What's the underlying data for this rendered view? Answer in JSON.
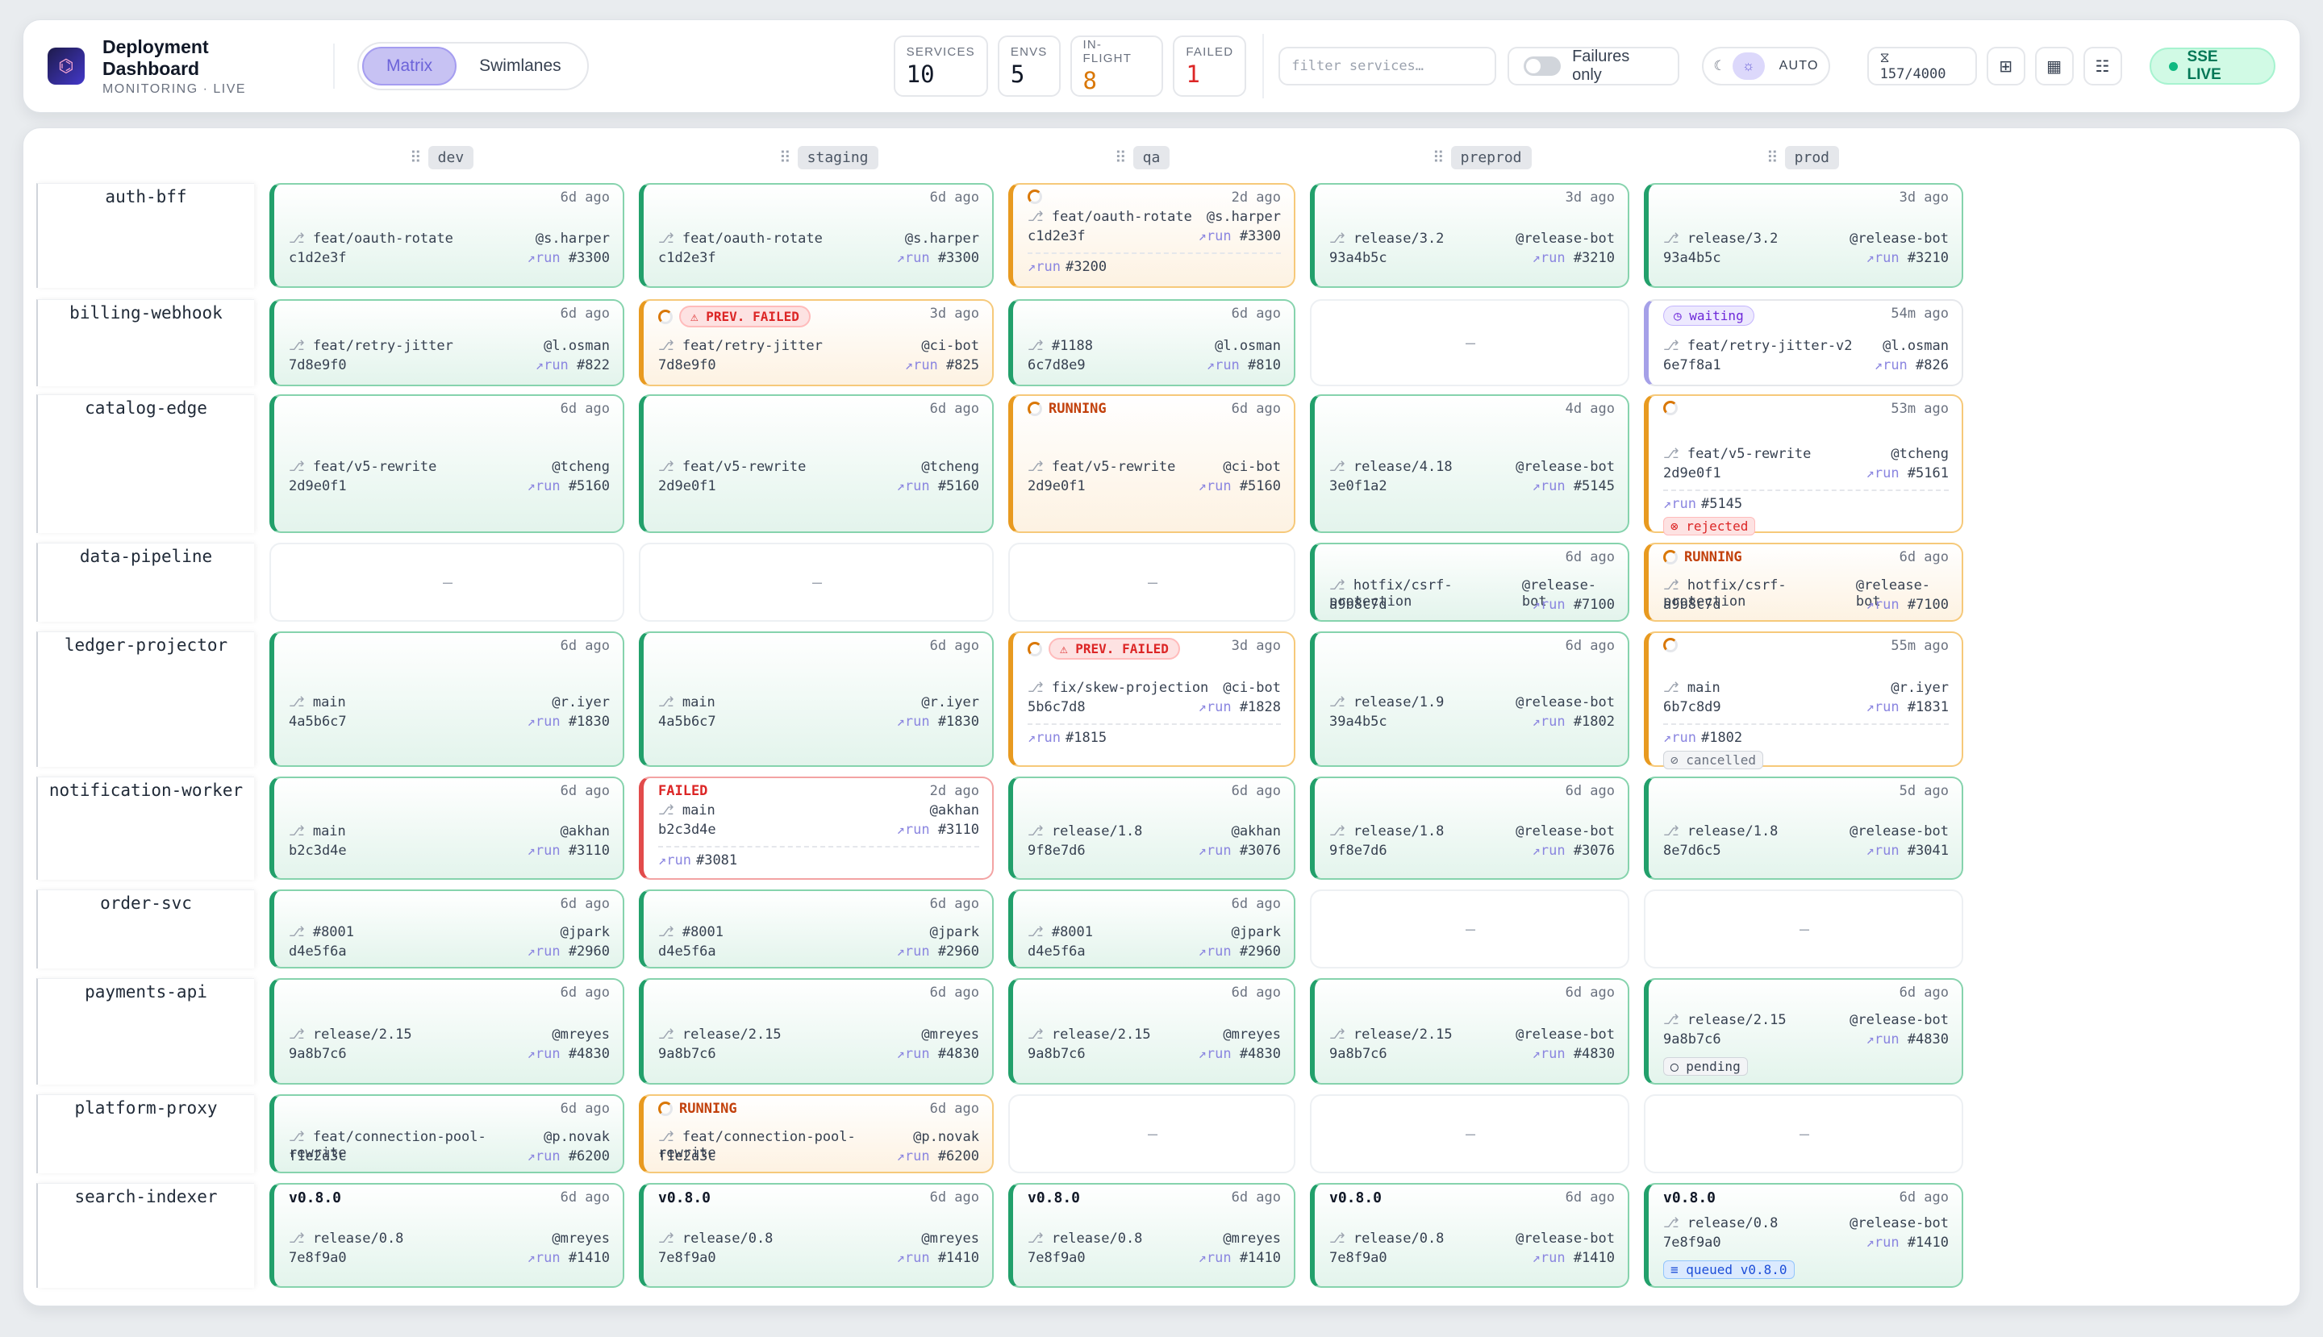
{
  "header": {
    "logo": "⌬",
    "title": "Deployment Dashboard",
    "subtitle": "MONITORING · LIVE",
    "views": [
      "Matrix",
      "Swimlanes"
    ],
    "stats": [
      {
        "label": "SERVICES",
        "value": "10",
        "tone": ""
      },
      {
        "label": "ENVS",
        "value": "5",
        "tone": ""
      },
      {
        "label": "IN-FLIGHT",
        "value": "8",
        "tone": "orange"
      },
      {
        "label": "FAILED",
        "value": "1",
        "tone": "red"
      }
    ],
    "filter_placeholder": "filter services…",
    "failures_only_label": "Failures only",
    "theme": {
      "moon": "☾",
      "sun": "☼",
      "auto": "AUTO"
    },
    "count": "⧖ 157/4000",
    "view_icons": [
      "⊞",
      "▦",
      "☷"
    ],
    "sse_label": "SSE LIVE"
  },
  "envs": [
    "dev",
    "staging",
    "qa",
    "preprod",
    "prod"
  ],
  "run_label": "run",
  "rows": [
    {
      "service": "auth-bff",
      "cells": [
        {
          "kind": "ok",
          "ago": "6d ago",
          "branch": "feat/oauth-rotate",
          "user": "@s.harper",
          "sha": "c1d2e3f",
          "run": "#3300"
        },
        {
          "kind": "ok",
          "ago": "6d ago",
          "branch": "feat/oauth-rotate",
          "user": "@s.harper",
          "sha": "c1d2e3f",
          "run": "#3300"
        },
        {
          "kind": "warn",
          "spinner": true,
          "ago": "2d ago",
          "branch": "feat/oauth-rotate",
          "user": "@s.harper",
          "sha": "c1d2e3f",
          "run": "#3300",
          "prev_run": "#3200"
        },
        {
          "kind": "ok",
          "ago": "3d ago",
          "branch": "release/3.2",
          "user": "@release-bot",
          "sha": "93a4b5c",
          "run": "#3210"
        },
        {
          "kind": "ok",
          "ago": "3d ago",
          "branch": "release/3.2",
          "user": "@release-bot",
          "sha": "93a4b5c",
          "run": "#3210"
        }
      ]
    },
    {
      "service": "billing-webhook",
      "cells": [
        {
          "kind": "ok",
          "ago": "6d ago",
          "branch": "feat/retry-jitter",
          "user": "@l.osman",
          "sha": "7d8e9f0",
          "run": "#822"
        },
        {
          "kind": "warn",
          "spinner": true,
          "badge": "⚠ PREV. FAILED",
          "ago": "3d ago",
          "branch": "feat/retry-jitter",
          "user": "@ci-bot",
          "sha": "7d8e9f0",
          "run": "#825"
        },
        {
          "kind": "ok",
          "ago": "6d ago",
          "branch": "#1188",
          "user": "@l.osman",
          "sha": "6c7d8e9",
          "run": "#810"
        },
        {
          "kind": "empty",
          "dash": "—"
        },
        {
          "kind": "wait",
          "badge": "◷ waiting",
          "ago": "54m ago",
          "branch": "feat/retry-jitter-v2",
          "user": "@l.osman",
          "sha": "6e7f8a1",
          "run": "#826"
        }
      ]
    },
    {
      "service": "catalog-edge",
      "cells": [
        {
          "kind": "ok",
          "ago": "6d ago",
          "branch": "feat/v5-rewrite",
          "user": "@tcheng",
          "sha": "2d9e0f1",
          "run": "#5160"
        },
        {
          "kind": "ok",
          "ago": "6d ago",
          "branch": "feat/v5-rewrite",
          "user": "@tcheng",
          "sha": "2d9e0f1",
          "run": "#5160"
        },
        {
          "kind": "warn",
          "spinner": true,
          "status": "RUNNING",
          "ago": "6d ago",
          "branch": "feat/v5-rewrite",
          "user": "@ci-bot",
          "sha": "2d9e0f1",
          "run": "#5160"
        },
        {
          "kind": "ok",
          "ago": "4d ago",
          "branch": "release/4.18",
          "user": "@release-bot",
          "sha": "3e0f1a2",
          "run": "#5145"
        },
        {
          "kind": "warn",
          "white": true,
          "spinner": true,
          "ago": "53m ago",
          "branch": "feat/v5-rewrite",
          "user": "@tcheng",
          "sha": "2d9e0f1",
          "run": "#5161",
          "prev_run": "#5145",
          "chip": "⊗ rejected",
          "chip_kind": "rej"
        }
      ]
    },
    {
      "service": "data-pipeline",
      "cells": [
        {
          "kind": "empty",
          "dash": "—"
        },
        {
          "kind": "empty",
          "dash": "—"
        },
        {
          "kind": "empty",
          "dash": "—"
        },
        {
          "kind": "ok",
          "ago": "6d ago",
          "branch": "hotfix/csrf-protection",
          "user": "@release-bot",
          "sha": "a9b8c7d",
          "run": "#7100"
        },
        {
          "kind": "warn",
          "spinner": true,
          "status": "RUNNING",
          "ago": "6d ago",
          "branch": "hotfix/csrf-protection",
          "user": "@release-bot",
          "sha": "a9b8c7d",
          "run": "#7100"
        }
      ]
    },
    {
      "service": "ledger-projector",
      "cells": [
        {
          "kind": "ok",
          "ago": "6d ago",
          "branch": "main",
          "user": "@r.iyer",
          "sha": "4a5b6c7",
          "run": "#1830"
        },
        {
          "kind": "ok",
          "ago": "6d ago",
          "branch": "main",
          "user": "@r.iyer",
          "sha": "4a5b6c7",
          "run": "#1830"
        },
        {
          "kind": "warn",
          "white": true,
          "spinner": true,
          "badge": "⚠ PREV. FAILED",
          "ago": "3d ago",
          "branch": "fix/skew-projection",
          "user": "@ci-bot",
          "sha": "5b6c7d8",
          "run": "#1828",
          "prev_run": "#1815"
        },
        {
          "kind": "ok",
          "ago": "6d ago",
          "branch": "release/1.9",
          "user": "@release-bot",
          "sha": "39a4b5c",
          "run": "#1802"
        },
        {
          "kind": "warn",
          "white": true,
          "spinner": true,
          "ago": "55m ago",
          "branch": "main",
          "user": "@r.iyer",
          "sha": "6b7c8d9",
          "run": "#1831",
          "prev_run": "#1802",
          "chip": "⊘ cancelled",
          "chip_kind": "can"
        }
      ]
    },
    {
      "service": "notification-worker",
      "cells": [
        {
          "kind": "ok",
          "ago": "6d ago",
          "branch": "main",
          "user": "@akhan",
          "sha": "b2c3d4e",
          "run": "#3110"
        },
        {
          "kind": "fail",
          "status": "FAILED",
          "ago": "2d ago",
          "branch": "main",
          "user": "@akhan",
          "sha": "b2c3d4e",
          "run": "#3110",
          "prev_run": "#3081"
        },
        {
          "kind": "ok",
          "ago": "6d ago",
          "branch": "release/1.8",
          "user": "@akhan",
          "sha": "9f8e7d6",
          "run": "#3076"
        },
        {
          "kind": "ok",
          "ago": "6d ago",
          "branch": "release/1.8",
          "user": "@release-bot",
          "sha": "9f8e7d6",
          "run": "#3076"
        },
        {
          "kind": "ok",
          "ago": "5d ago",
          "branch": "release/1.8",
          "user": "@release-bot",
          "sha": "8e7d6c5",
          "run": "#3041"
        }
      ]
    },
    {
      "service": "order-svc",
      "cells": [
        {
          "kind": "ok",
          "ago": "6d ago",
          "branch": "#8001",
          "user": "@jpark",
          "sha": "d4e5f6a",
          "run": "#2960"
        },
        {
          "kind": "ok",
          "ago": "6d ago",
          "branch": "#8001",
          "user": "@jpark",
          "sha": "d4e5f6a",
          "run": "#2960"
        },
        {
          "kind": "ok",
          "ago": "6d ago",
          "branch": "#8001",
          "user": "@jpark",
          "sha": "d4e5f6a",
          "run": "#2960"
        },
        {
          "kind": "empty",
          "dash": "—"
        },
        {
          "kind": "empty",
          "dash": "—"
        }
      ]
    },
    {
      "service": "payments-api",
      "cells": [
        {
          "kind": "ok",
          "ago": "6d ago",
          "branch": "release/2.15",
          "user": "@mreyes",
          "sha": "9a8b7c6",
          "run": "#4830"
        },
        {
          "kind": "ok",
          "ago": "6d ago",
          "branch": "release/2.15",
          "user": "@mreyes",
          "sha": "9a8b7c6",
          "run": "#4830"
        },
        {
          "kind": "ok",
          "ago": "6d ago",
          "branch": "release/2.15",
          "user": "@mreyes",
          "sha": "9a8b7c6",
          "run": "#4830"
        },
        {
          "kind": "ok",
          "ago": "6d ago",
          "branch": "release/2.15",
          "user": "@release-bot",
          "sha": "9a8b7c6",
          "run": "#4830"
        },
        {
          "kind": "ok",
          "ago": "6d ago",
          "branch": "release/2.15",
          "user": "@release-bot",
          "sha": "9a8b7c6",
          "run": "#4830",
          "chip": "◯ pending",
          "chip_kind": "pen"
        }
      ]
    },
    {
      "service": "platform-proxy",
      "cells": [
        {
          "kind": "ok",
          "ago": "6d ago",
          "branch": "feat/connection-pool-rewrite",
          "user": "@p.novak",
          "sha": "f1e2d3c",
          "run": "#6200"
        },
        {
          "kind": "warn",
          "spinner": true,
          "status": "RUNNING",
          "ago": "6d ago",
          "branch": "feat/connection-pool-rewrite",
          "user": "@p.novak",
          "sha": "f1e2d3c",
          "run": "#6200"
        },
        {
          "kind": "empty",
          "dash": "—"
        },
        {
          "kind": "empty",
          "dash": "—"
        },
        {
          "kind": "empty",
          "dash": "—"
        }
      ]
    },
    {
      "service": "search-indexer",
      "cells": [
        {
          "kind": "ok",
          "version": "v0.8.0",
          "ago": "6d ago",
          "branch": "release/0.8",
          "user": "@mreyes",
          "sha": "7e8f9a0",
          "run": "#1410"
        },
        {
          "kind": "ok",
          "version": "v0.8.0",
          "ago": "6d ago",
          "branch": "release/0.8",
          "user": "@mreyes",
          "sha": "7e8f9a0",
          "run": "#1410"
        },
        {
          "kind": "ok",
          "version": "v0.8.0",
          "ago": "6d ago",
          "branch": "release/0.8",
          "user": "@mreyes",
          "sha": "7e8f9a0",
          "run": "#1410"
        },
        {
          "kind": "ok",
          "version": "v0.8.0",
          "ago": "6d ago",
          "branch": "release/0.8",
          "user": "@release-bot",
          "sha": "7e8f9a0",
          "run": "#1410"
        },
        {
          "kind": "ok",
          "version": "v0.8.0",
          "ago": "6d ago",
          "branch": "release/0.8",
          "user": "@release-bot",
          "sha": "7e8f9a0",
          "run": "#1410",
          "chip": "≡ queued v0.8.0",
          "chip_kind": "que"
        }
      ]
    }
  ]
}
